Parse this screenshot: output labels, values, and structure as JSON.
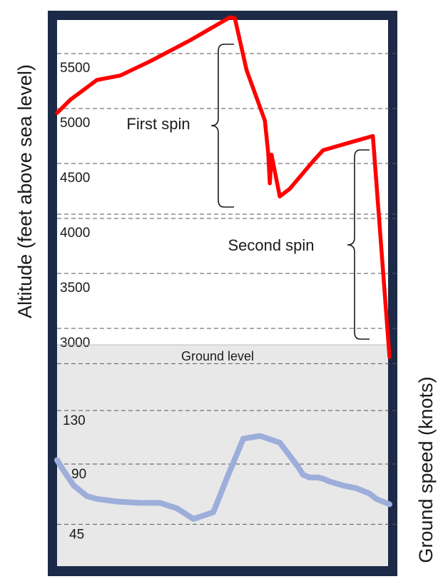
{
  "chart_data": [
    {
      "type": "line",
      "title": "",
      "ylabel": "Altitude (feet above sea level)",
      "y_ticks": [
        5500,
        5000,
        4500,
        4000,
        3500,
        3000
      ],
      "ylim": [
        2700,
        5900
      ],
      "x": [
        0,
        4,
        12,
        19,
        28,
        40,
        52,
        53.5,
        57,
        62.5,
        63.5,
        64,
        64.5,
        67,
        70,
        77,
        80,
        88,
        95,
        100
      ],
      "series": [
        {
          "color": "#ff0000",
          "values": [
            4960,
            5080,
            5260,
            5300,
            5430,
            5620,
            5830,
            5820,
            5350,
            4890,
            4600,
            4320,
            4580,
            4200,
            4270,
            4520,
            4620,
            4690,
            4750,
            2740
          ]
        }
      ],
      "grid": "dashed-horizontal",
      "annotations": [
        {
          "text": "First spin",
          "bracket": "right-brace"
        },
        {
          "text": "Second spin",
          "bracket": "right-brace"
        }
      ],
      "baseline_label": "Ground level"
    },
    {
      "type": "line",
      "title": "",
      "ylabel": "Ground speed (knots)",
      "y_ticks": [
        130,
        90,
        45
      ],
      "ylim": [
        10,
        175
      ],
      "x": [
        0,
        2,
        5,
        9,
        12,
        18,
        25,
        31,
        36,
        41,
        47,
        51,
        56,
        61,
        67,
        72.5,
        74,
        76,
        78.5,
        80,
        82,
        86,
        90,
        94,
        96,
        99,
        100
      ],
      "series": [
        {
          "color": "#9daedb",
          "values": [
            93,
            85,
            74,
            66,
            64,
            62,
            61,
            61,
            57,
            49,
            54,
            79,
            109,
            111,
            106,
            88,
            82,
            80,
            80,
            79,
            77,
            74,
            72,
            68,
            64,
            61,
            60
          ]
        }
      ],
      "grid": "dashed-horizontal"
    }
  ],
  "colors": {
    "frame": "#1c2a48",
    "altitude_line": "#ff0000",
    "speed_line": "#9daedb",
    "ground_panel": "#e8e8e8",
    "grid": "#555555"
  }
}
